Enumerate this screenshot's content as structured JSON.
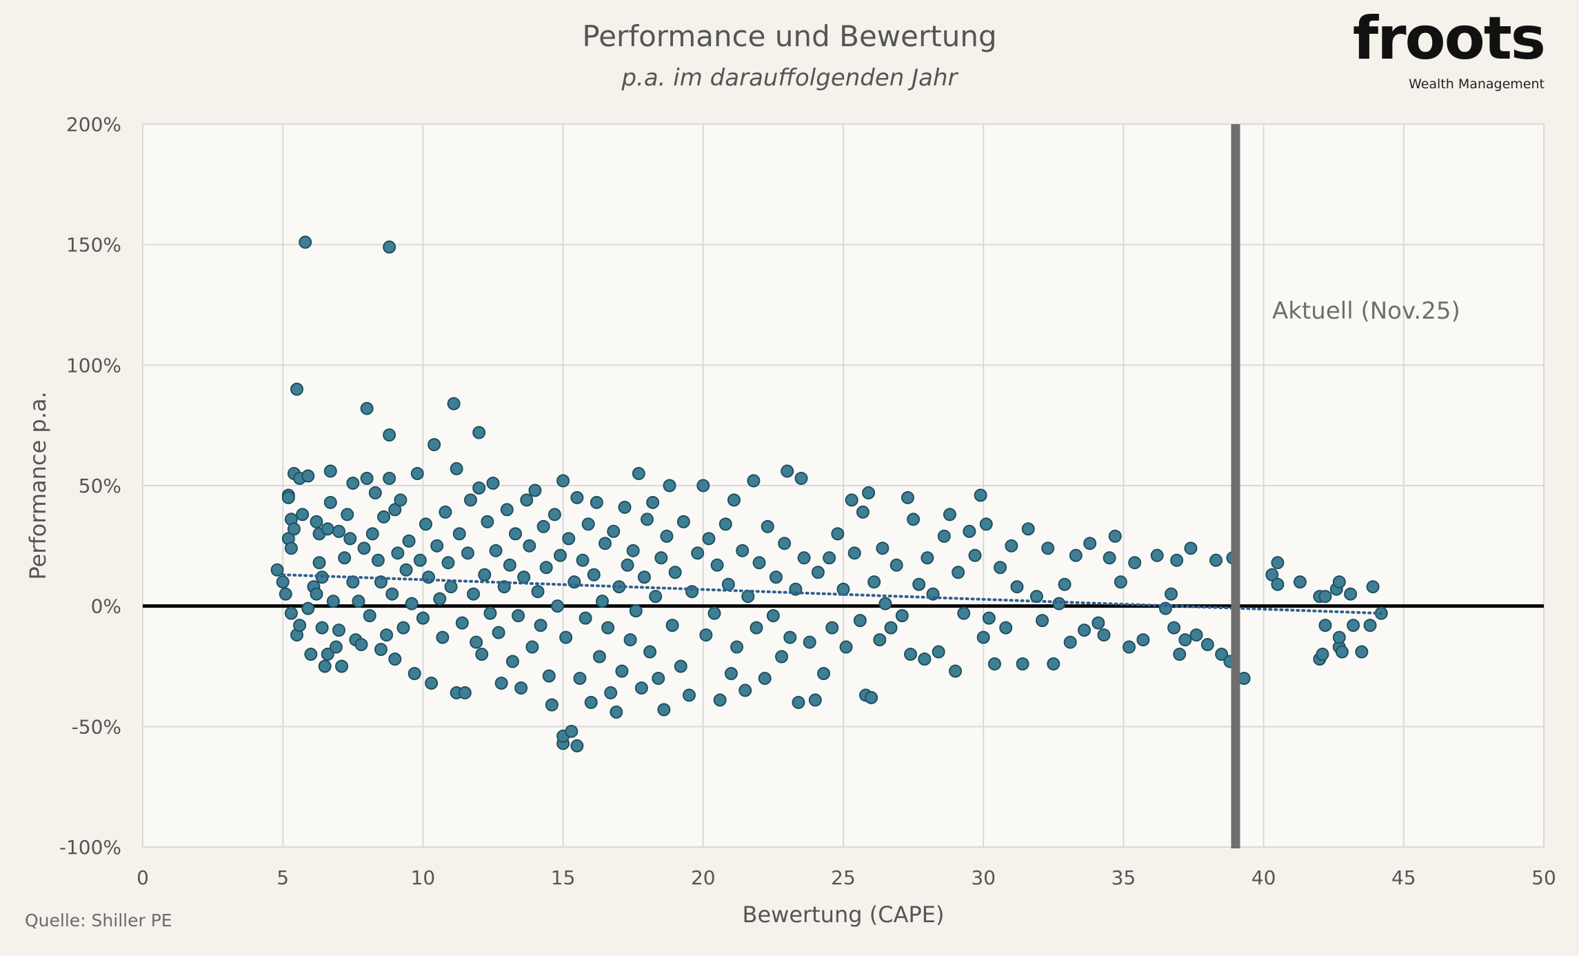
{
  "logo": {
    "word": "froots",
    "tagline": "Wealth Management"
  },
  "source": "Quelle: Shiller PE",
  "colors": {
    "background": "#f5f2eb",
    "plot_background": "#faf9f6",
    "grid": "#d9d9d9",
    "point_fill": "#3f7f93",
    "point_stroke": "#1f4f63",
    "trend": "#2f5f8f",
    "zero_line": "#000000",
    "marker_line": "#6e6e6e"
  },
  "chart_data": {
    "type": "scatter",
    "title": "Performance und Bewertung",
    "subtitle": "p.a. im darauffolgenden Jahr",
    "xlabel": "Bewertung (CAPE)",
    "ylabel": "Performance p.a.",
    "xlim": [
      0,
      50
    ],
    "ylim": [
      -100,
      200
    ],
    "xticks": [
      0,
      5,
      10,
      15,
      20,
      25,
      30,
      35,
      40,
      45,
      50
    ],
    "yticks": [
      -100,
      -50,
      0,
      50,
      100,
      150,
      200
    ],
    "ytick_labels": [
      "-100%",
      "-50%",
      "0%",
      "50%",
      "100%",
      "150%",
      "200%"
    ],
    "grid": true,
    "trendline": {
      "style": "dotted",
      "points": [
        [
          5,
          13
        ],
        [
          44.2,
          -3
        ]
      ]
    },
    "marker_line": {
      "x": 39,
      "label": "Aktuell (Nov.25)"
    },
    "points": [
      [
        4.8,
        15
      ],
      [
        5.0,
        10
      ],
      [
        5.1,
        5
      ],
      [
        5.2,
        46
      ],
      [
        5.2,
        45
      ],
      [
        5.2,
        28
      ],
      [
        5.3,
        36
      ],
      [
        5.3,
        24
      ],
      [
        5.3,
        -3
      ],
      [
        5.4,
        32
      ],
      [
        5.4,
        55
      ],
      [
        5.5,
        90
      ],
      [
        5.5,
        -12
      ],
      [
        5.6,
        53
      ],
      [
        5.6,
        -8
      ],
      [
        5.7,
        38
      ],
      [
        5.8,
        151
      ],
      [
        5.9,
        -1
      ],
      [
        5.9,
        54
      ],
      [
        6.0,
        -20
      ],
      [
        6.1,
        8
      ],
      [
        6.2,
        35
      ],
      [
        6.2,
        5
      ],
      [
        6.3,
        18
      ],
      [
        6.3,
        30
      ],
      [
        6.4,
        -9
      ],
      [
        6.4,
        12
      ],
      [
        6.5,
        -25
      ],
      [
        6.6,
        32
      ],
      [
        6.6,
        -20
      ],
      [
        6.7,
        56
      ],
      [
        6.7,
        43
      ],
      [
        6.8,
        2
      ],
      [
        6.9,
        -17
      ],
      [
        7.0,
        31
      ],
      [
        7.0,
        -10
      ],
      [
        7.1,
        -25
      ],
      [
        7.2,
        20
      ],
      [
        7.3,
        38
      ],
      [
        7.4,
        28
      ],
      [
        7.5,
        51
      ],
      [
        7.5,
        10
      ],
      [
        7.6,
        -14
      ],
      [
        7.7,
        2
      ],
      [
        7.8,
        -16
      ],
      [
        7.9,
        24
      ],
      [
        8.0,
        82
      ],
      [
        8.0,
        53
      ],
      [
        8.1,
        -4
      ],
      [
        8.2,
        30
      ],
      [
        8.3,
        47
      ],
      [
        8.4,
        19
      ],
      [
        8.5,
        -18
      ],
      [
        8.5,
        10
      ],
      [
        8.6,
        37
      ],
      [
        8.7,
        -12
      ],
      [
        8.8,
        71
      ],
      [
        8.8,
        149
      ],
      [
        8.8,
        53
      ],
      [
        8.9,
        5
      ],
      [
        9.0,
        -22
      ],
      [
        9.0,
        40
      ],
      [
        9.1,
        22
      ],
      [
        9.2,
        44
      ],
      [
        9.3,
        -9
      ],
      [
        9.4,
        15
      ],
      [
        9.5,
        27
      ],
      [
        9.6,
        1
      ],
      [
        9.7,
        -28
      ],
      [
        9.8,
        55
      ],
      [
        9.9,
        19
      ],
      [
        10.0,
        -5
      ],
      [
        10.1,
        34
      ],
      [
        10.2,
        12
      ],
      [
        10.3,
        -32
      ],
      [
        10.4,
        67
      ],
      [
        10.5,
        25
      ],
      [
        10.6,
        3
      ],
      [
        10.7,
        -13
      ],
      [
        10.8,
        39
      ],
      [
        10.9,
        18
      ],
      [
        11.0,
        8
      ],
      [
        11.1,
        84
      ],
      [
        11.2,
        57
      ],
      [
        11.2,
        -36
      ],
      [
        11.3,
        30
      ],
      [
        11.4,
        -7
      ],
      [
        11.5,
        -36
      ],
      [
        11.6,
        22
      ],
      [
        11.7,
        44
      ],
      [
        11.8,
        5
      ],
      [
        11.9,
        -15
      ],
      [
        12.0,
        72
      ],
      [
        12.0,
        49
      ],
      [
        12.1,
        -20
      ],
      [
        12.2,
        13
      ],
      [
        12.3,
        35
      ],
      [
        12.4,
        -3
      ],
      [
        12.5,
        51
      ],
      [
        12.6,
        23
      ],
      [
        12.7,
        -11
      ],
      [
        12.8,
        -32
      ],
      [
        12.9,
        8
      ],
      [
        13.0,
        40
      ],
      [
        13.1,
        17
      ],
      [
        13.2,
        -23
      ],
      [
        13.3,
        30
      ],
      [
        13.4,
        -4
      ],
      [
        13.5,
        -34
      ],
      [
        13.6,
        12
      ],
      [
        13.7,
        44
      ],
      [
        13.8,
        25
      ],
      [
        13.9,
        -17
      ],
      [
        14.0,
        48
      ],
      [
        14.1,
        6
      ],
      [
        14.2,
        -8
      ],
      [
        14.3,
        33
      ],
      [
        14.4,
        16
      ],
      [
        14.5,
        -29
      ],
      [
        14.6,
        -41
      ],
      [
        14.7,
        38
      ],
      [
        14.8,
        0
      ],
      [
        14.9,
        21
      ],
      [
        15.0,
        -57
      ],
      [
        15.0,
        -54
      ],
      [
        15.0,
        52
      ],
      [
        15.1,
        -13
      ],
      [
        15.2,
        28
      ],
      [
        15.3,
        -52
      ],
      [
        15.4,
        10
      ],
      [
        15.5,
        -58
      ],
      [
        15.5,
        45
      ],
      [
        15.6,
        -30
      ],
      [
        15.7,
        19
      ],
      [
        15.8,
        -5
      ],
      [
        15.9,
        34
      ],
      [
        16.0,
        -40
      ],
      [
        16.1,
        13
      ],
      [
        16.2,
        43
      ],
      [
        16.3,
        -21
      ],
      [
        16.4,
        2
      ],
      [
        16.5,
        26
      ],
      [
        16.6,
        -9
      ],
      [
        16.7,
        -36
      ],
      [
        16.8,
        31
      ],
      [
        16.9,
        -44
      ],
      [
        17.0,
        8
      ],
      [
        17.1,
        -27
      ],
      [
        17.2,
        41
      ],
      [
        17.3,
        17
      ],
      [
        17.4,
        -14
      ],
      [
        17.5,
        23
      ],
      [
        17.6,
        -2
      ],
      [
        17.7,
        55
      ],
      [
        17.8,
        -34
      ],
      [
        17.9,
        12
      ],
      [
        18.0,
        36
      ],
      [
        18.1,
        -19
      ],
      [
        18.2,
        43
      ],
      [
        18.3,
        4
      ],
      [
        18.4,
        -30
      ],
      [
        18.5,
        20
      ],
      [
        18.6,
        -43
      ],
      [
        18.7,
        29
      ],
      [
        18.8,
        50
      ],
      [
        18.9,
        -8
      ],
      [
        19.0,
        14
      ],
      [
        19.2,
        -25
      ],
      [
        19.3,
        35
      ],
      [
        19.5,
        -37
      ],
      [
        19.6,
        6
      ],
      [
        19.8,
        22
      ],
      [
        20.0,
        50
      ],
      [
        20.1,
        -12
      ],
      [
        20.2,
        28
      ],
      [
        20.4,
        -3
      ],
      [
        20.5,
        17
      ],
      [
        20.6,
        -39
      ],
      [
        20.8,
        34
      ],
      [
        20.9,
        9
      ],
      [
        21.0,
        -28
      ],
      [
        21.1,
        44
      ],
      [
        21.2,
        -17
      ],
      [
        21.4,
        23
      ],
      [
        21.5,
        -35
      ],
      [
        21.6,
        4
      ],
      [
        21.8,
        52
      ],
      [
        21.9,
        -9
      ],
      [
        22.0,
        18
      ],
      [
        22.2,
        -30
      ],
      [
        22.3,
        33
      ],
      [
        22.5,
        -4
      ],
      [
        22.6,
        12
      ],
      [
        22.8,
        -21
      ],
      [
        22.9,
        26
      ],
      [
        23.0,
        56
      ],
      [
        23.1,
        -13
      ],
      [
        23.3,
        7
      ],
      [
        23.4,
        -40
      ],
      [
        23.5,
        53
      ],
      [
        23.6,
        20
      ],
      [
        23.8,
        -15
      ],
      [
        24.0,
        -39
      ],
      [
        24.1,
        14
      ],
      [
        24.3,
        -28
      ],
      [
        24.5,
        20
      ],
      [
        24.6,
        -9
      ],
      [
        24.8,
        30
      ],
      [
        25.0,
        7
      ],
      [
        25.1,
        -17
      ],
      [
        25.3,
        44
      ],
      [
        25.4,
        22
      ],
      [
        25.6,
        -6
      ],
      [
        25.7,
        39
      ],
      [
        25.8,
        -37
      ],
      [
        25.9,
        47
      ],
      [
        26.0,
        -38
      ],
      [
        26.1,
        10
      ],
      [
        26.3,
        -14
      ],
      [
        26.4,
        24
      ],
      [
        26.5,
        1
      ],
      [
        26.7,
        -9
      ],
      [
        26.9,
        17
      ],
      [
        27.1,
        -4
      ],
      [
        27.3,
        45
      ],
      [
        27.4,
        -20
      ],
      [
        27.5,
        36
      ],
      [
        27.7,
        9
      ],
      [
        27.9,
        -22
      ],
      [
        28.0,
        20
      ],
      [
        28.2,
        5
      ],
      [
        28.4,
        -19
      ],
      [
        28.6,
        29
      ],
      [
        28.8,
        38
      ],
      [
        29.0,
        -27
      ],
      [
        29.1,
        14
      ],
      [
        29.3,
        -3
      ],
      [
        29.5,
        31
      ],
      [
        29.7,
        21
      ],
      [
        29.9,
        46
      ],
      [
        30.0,
        -13
      ],
      [
        30.1,
        34
      ],
      [
        30.2,
        -5
      ],
      [
        30.4,
        -24
      ],
      [
        30.6,
        16
      ],
      [
        30.8,
        -9
      ],
      [
        31.0,
        25
      ],
      [
        31.2,
        8
      ],
      [
        31.4,
        -24
      ],
      [
        31.6,
        32
      ],
      [
        31.9,
        4
      ],
      [
        32.1,
        -6
      ],
      [
        32.3,
        24
      ],
      [
        32.5,
        -24
      ],
      [
        32.7,
        1
      ],
      [
        32.9,
        9
      ],
      [
        33.1,
        -15
      ],
      [
        33.3,
        21
      ],
      [
        33.6,
        -10
      ],
      [
        33.8,
        26
      ],
      [
        34.1,
        -7
      ],
      [
        34.3,
        -12
      ],
      [
        34.5,
        20
      ],
      [
        34.7,
        29
      ],
      [
        34.9,
        10
      ],
      [
        35.2,
        -17
      ],
      [
        35.4,
        18
      ],
      [
        35.7,
        -14
      ],
      [
        36.2,
        21
      ],
      [
        36.5,
        -1
      ],
      [
        36.7,
        5
      ],
      [
        36.8,
        -9
      ],
      [
        36.9,
        19
      ],
      [
        37.0,
        -20
      ],
      [
        37.2,
        -14
      ],
      [
        37.4,
        24
      ],
      [
        37.6,
        -12
      ],
      [
        38.0,
        -16
      ],
      [
        38.3,
        19
      ],
      [
        38.5,
        -20
      ],
      [
        38.8,
        -23
      ],
      [
        38.9,
        20
      ],
      [
        39.3,
        -30
      ],
      [
        40.3,
        13
      ],
      [
        40.5,
        18
      ],
      [
        40.5,
        9
      ],
      [
        41.3,
        10
      ],
      [
        42.0,
        4
      ],
      [
        42.0,
        -22
      ],
      [
        42.1,
        -20
      ],
      [
        42.2,
        4
      ],
      [
        42.2,
        -8
      ],
      [
        42.6,
        7
      ],
      [
        42.7,
        10
      ],
      [
        42.7,
        -17
      ],
      [
        42.7,
        -13
      ],
      [
        42.8,
        -19
      ],
      [
        43.1,
        5
      ],
      [
        43.2,
        -8
      ],
      [
        43.5,
        -19
      ],
      [
        43.8,
        -8
      ],
      [
        43.9,
        8
      ],
      [
        44.2,
        -3
      ]
    ]
  }
}
